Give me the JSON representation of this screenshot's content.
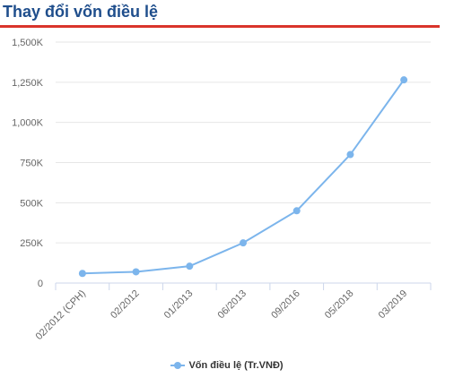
{
  "header": {
    "title": "Thay đổi vốn điều lệ"
  },
  "colors": {
    "title": "#1f4e8c",
    "rule": "#d9342b",
    "series": "#7cb5ec",
    "grid": "#e6e6e6"
  },
  "chart_data": {
    "type": "line",
    "title": "",
    "xlabel": "",
    "ylabel": "",
    "categories": [
      "02/2012 (CPH)",
      "02/2012",
      "01/2013",
      "06/2013",
      "09/2016",
      "05/2018",
      "03/2019"
    ],
    "series": [
      {
        "name": "Vốn điều lệ (Tr.VNĐ)",
        "values": [
          60000,
          70000,
          105000,
          250000,
          450000,
          800000,
          1265000
        ]
      }
    ],
    "ylim": [
      0,
      1500000
    ],
    "yticks": [
      0,
      250000,
      500000,
      750000,
      1000000,
      1250000,
      1500000
    ],
    "ytick_labels": [
      "0",
      "250K",
      "500K",
      "750K",
      "1,000K",
      "1,250K",
      "1,500K"
    ],
    "grid": true,
    "legend_position": "bottom-center"
  }
}
